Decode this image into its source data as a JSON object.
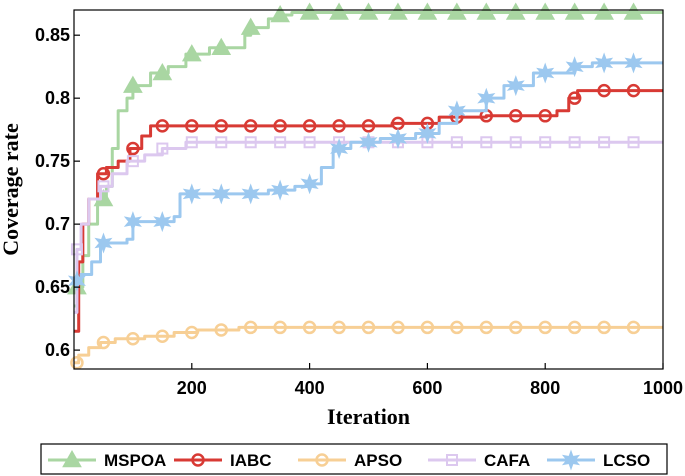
{
  "chart_data": {
    "type": "line",
    "title": "",
    "xlabel": "Iteration",
    "ylabel": "Coverage rate",
    "xlim": [
      0,
      1000
    ],
    "ylim": [
      0.585,
      0.87
    ],
    "xticks": [
      200,
      400,
      600,
      800,
      1000
    ],
    "yticks": [
      0.6,
      0.65,
      0.7,
      0.75,
      0.8,
      0.85
    ],
    "ytick_labels": [
      "0.6",
      "0.65",
      "0.7",
      "0.75",
      "0.8",
      "0.85"
    ],
    "grid": false,
    "legend_position": "bottom",
    "series": [
      {
        "name": "MSPOA",
        "color": "#a9d6a2",
        "marker": "triangle",
        "step": [
          [
            0,
            0.635
          ],
          [
            5,
            0.65
          ],
          [
            15,
            0.675
          ],
          [
            25,
            0.7
          ],
          [
            40,
            0.72
          ],
          [
            55,
            0.73
          ],
          [
            65,
            0.76
          ],
          [
            75,
            0.79
          ],
          [
            90,
            0.8
          ],
          [
            100,
            0.81
          ],
          [
            130,
            0.82
          ],
          [
            160,
            0.825
          ],
          [
            190,
            0.835
          ],
          [
            230,
            0.84
          ],
          [
            290,
            0.85
          ],
          [
            300,
            0.856
          ],
          [
            330,
            0.863
          ],
          [
            350,
            0.866
          ],
          [
            370,
            0.868
          ],
          [
            1000,
            0.868
          ]
        ],
        "markers_x": [
          5,
          50,
          100,
          150,
          200,
          250,
          300,
          350,
          400,
          450,
          500,
          550,
          600,
          650,
          700,
          750,
          800,
          850,
          900,
          950
        ]
      },
      {
        "name": "IABC",
        "color": "#d83a34",
        "marker": "circle",
        "step": [
          [
            0,
            0.615
          ],
          [
            8,
            0.67
          ],
          [
            15,
            0.7
          ],
          [
            25,
            0.72
          ],
          [
            40,
            0.74
          ],
          [
            55,
            0.745
          ],
          [
            75,
            0.75
          ],
          [
            95,
            0.76
          ],
          [
            115,
            0.77
          ],
          [
            130,
            0.778
          ],
          [
            540,
            0.78
          ],
          [
            620,
            0.785
          ],
          [
            700,
            0.786
          ],
          [
            820,
            0.79
          ],
          [
            840,
            0.8
          ],
          [
            855,
            0.806
          ],
          [
            1000,
            0.806
          ]
        ],
        "markers_x": [
          50,
          100,
          150,
          200,
          250,
          300,
          350,
          400,
          450,
          500,
          550,
          600,
          650,
          700,
          750,
          800,
          850,
          900,
          950
        ]
      },
      {
        "name": "APSO",
        "color": "#f7cf95",
        "marker": "circle",
        "step": [
          [
            0,
            0.59
          ],
          [
            8,
            0.596
          ],
          [
            25,
            0.602
          ],
          [
            45,
            0.606
          ],
          [
            70,
            0.609
          ],
          [
            120,
            0.611
          ],
          [
            170,
            0.614
          ],
          [
            210,
            0.616
          ],
          [
            280,
            0.618
          ],
          [
            1000,
            0.618
          ]
        ],
        "markers_x": [
          5,
          50,
          100,
          150,
          200,
          250,
          300,
          350,
          400,
          450,
          500,
          550,
          600,
          650,
          700,
          750,
          800,
          850,
          900,
          950
        ]
      },
      {
        "name": "CAFA",
        "color": "#dcc8ef",
        "marker": "square",
        "step": [
          [
            0,
            0.63
          ],
          [
            5,
            0.68
          ],
          [
            12,
            0.7
          ],
          [
            25,
            0.72
          ],
          [
            45,
            0.73
          ],
          [
            65,
            0.74
          ],
          [
            90,
            0.75
          ],
          [
            120,
            0.755
          ],
          [
            150,
            0.76
          ],
          [
            190,
            0.765
          ],
          [
            1000,
            0.765
          ]
        ],
        "markers_x": [
          5,
          50,
          100,
          150,
          200,
          250,
          300,
          350,
          400,
          450,
          500,
          550,
          600,
          650,
          700,
          750,
          800,
          850,
          900,
          950
        ]
      },
      {
        "name": "LCSO",
        "color": "#9cc8ef",
        "marker": "star",
        "step": [
          [
            0,
            0.652
          ],
          [
            5,
            0.655
          ],
          [
            12,
            0.66
          ],
          [
            30,
            0.67
          ],
          [
            45,
            0.685
          ],
          [
            90,
            0.688
          ],
          [
            100,
            0.702
          ],
          [
            170,
            0.706
          ],
          [
            180,
            0.724
          ],
          [
            330,
            0.727
          ],
          [
            375,
            0.73
          ],
          [
            400,
            0.732
          ],
          [
            420,
            0.745
          ],
          [
            440,
            0.76
          ],
          [
            470,
            0.765
          ],
          [
            520,
            0.768
          ],
          [
            580,
            0.772
          ],
          [
            620,
            0.78
          ],
          [
            650,
            0.79
          ],
          [
            700,
            0.8
          ],
          [
            730,
            0.81
          ],
          [
            780,
            0.82
          ],
          [
            850,
            0.825
          ],
          [
            880,
            0.828
          ],
          [
            1000,
            0.828
          ]
        ],
        "markers_x": [
          5,
          50,
          100,
          150,
          200,
          250,
          300,
          350,
          400,
          450,
          500,
          550,
          600,
          650,
          700,
          750,
          800,
          850,
          900,
          950
        ]
      }
    ]
  }
}
